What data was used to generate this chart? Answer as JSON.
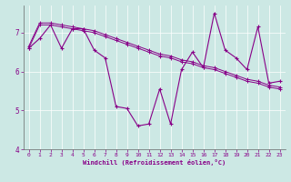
{
  "xlabel": "Windchill (Refroidissement éolien,°C)",
  "background_color": "#cce8e4",
  "line_color": "#880088",
  "x_data": [
    0,
    1,
    2,
    3,
    4,
    5,
    6,
    7,
    8,
    9,
    10,
    11,
    12,
    13,
    14,
    15,
    16,
    17,
    18,
    19,
    20,
    21,
    22,
    23
  ],
  "series_straight1": [
    6.65,
    7.25,
    7.25,
    7.2,
    7.15,
    7.1,
    7.05,
    6.95,
    6.85,
    6.75,
    6.65,
    6.55,
    6.45,
    6.4,
    6.3,
    6.25,
    6.15,
    6.1,
    6.0,
    5.9,
    5.8,
    5.75,
    5.65,
    5.6
  ],
  "series_straight2": [
    6.6,
    7.2,
    7.2,
    7.15,
    7.1,
    7.05,
    7.0,
    6.9,
    6.8,
    6.7,
    6.6,
    6.5,
    6.4,
    6.35,
    6.25,
    6.2,
    6.1,
    6.05,
    5.95,
    5.85,
    5.75,
    5.7,
    5.6,
    5.55
  ],
  "series_wavy": [
    6.6,
    6.85,
    7.2,
    6.6,
    7.1,
    7.1,
    6.55,
    6.35,
    5.1,
    5.05,
    4.6,
    4.65,
    5.55,
    4.65,
    6.05,
    6.5,
    6.1,
    7.5,
    6.55,
    6.35,
    6.05,
    7.15,
    5.7,
    5.75
  ],
  "ylim": [
    4.0,
    7.7
  ],
  "xlim": [
    -0.5,
    23.5
  ],
  "yticks": [
    4,
    5,
    6,
    7
  ],
  "xticks": [
    0,
    1,
    2,
    3,
    4,
    5,
    6,
    7,
    8,
    9,
    10,
    11,
    12,
    13,
    14,
    15,
    16,
    17,
    18,
    19,
    20,
    21,
    22,
    23
  ]
}
